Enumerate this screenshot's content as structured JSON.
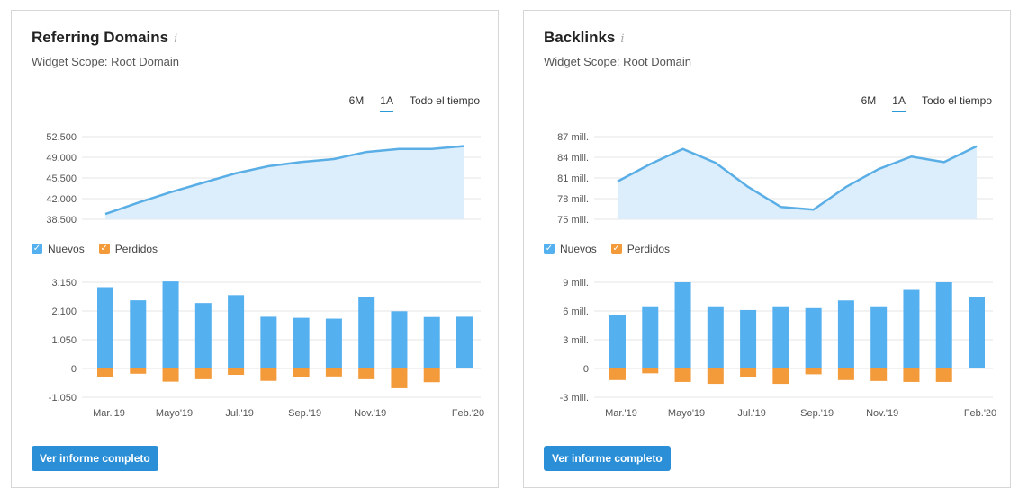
{
  "colors": {
    "accent": "#2a9ad9",
    "area_line": "#5aaee6",
    "area_fill": "#dceefb",
    "nuevos": "#55b0f0",
    "perdidos": "#f39a3a",
    "grid": "#e4e4e4"
  },
  "widgets": [
    {
      "title": "Referring Domains",
      "info_icon": "i",
      "subtitle": "Widget Scope: Root Domain",
      "tabs": [
        "6M",
        "1A",
        "Todo el tiempo"
      ],
      "active_tab": "1A",
      "legend": [
        "Nuevos",
        "Perdidos"
      ],
      "button_label": "Ver informe completo"
    },
    {
      "title": "Backlinks",
      "info_icon": "i",
      "subtitle": "Widget Scope: Root Domain",
      "tabs": [
        "6M",
        "1A",
        "Todo el tiempo"
      ],
      "active_tab": "1A",
      "legend": [
        "Nuevos",
        "Perdidos"
      ],
      "button_label": "Ver informe completo"
    }
  ],
  "chart_data": [
    {
      "type": "area",
      "x_labels": [
        "Mar.'19",
        "",
        "Mayo'19",
        "",
        "Jul.'19",
        "",
        "Sep.'19",
        "",
        "Nov.'19",
        "",
        "",
        "Feb.'20"
      ],
      "values": [
        39400,
        41300,
        43100,
        44700,
        46300,
        47500,
        48200,
        48700,
        49900,
        50400,
        50400,
        50900
      ],
      "ylim": [
        38500,
        52500
      ],
      "yticks": [
        38500,
        42000,
        45500,
        49000,
        52500
      ],
      "ytick_labels": [
        "38.500",
        "42.000",
        "45.500",
        "49.000",
        "52.500"
      ],
      "grid": true
    },
    {
      "type": "bar",
      "x_labels": [
        "Mar.'19",
        "",
        "Mayo'19",
        "",
        "Jul.'19",
        "",
        "Sep.'19",
        "",
        "Nov.'19",
        "",
        "",
        "Feb.'20"
      ],
      "series": [
        {
          "name": "Nuevos",
          "values": [
            2970,
            2490,
            3180,
            2390,
            2680,
            1890,
            1850,
            1820,
            2610,
            2090,
            1880,
            1890
          ]
        },
        {
          "name": "Perdidos",
          "values": [
            -310,
            -190,
            -480,
            -390,
            -230,
            -450,
            -310,
            -290,
            -390,
            -720,
            -500,
            0
          ]
        }
      ],
      "ylim": [
        -1050,
        3150
      ],
      "yticks": [
        -1050,
        0,
        1050,
        2100,
        3150
      ],
      "ytick_labels": [
        "-1.050",
        "0",
        "1.050",
        "2.100",
        "3.150"
      ],
      "grid": true
    },
    {
      "type": "area",
      "x_labels": [
        "Mar.'19",
        "",
        "Mayo'19",
        "",
        "Jul.'19",
        "",
        "Sep.'19",
        "",
        "Nov.'19",
        "",
        "",
        "Feb.'20"
      ],
      "values": [
        80.5,
        83.0,
        85.2,
        83.2,
        79.7,
        76.8,
        76.4,
        79.7,
        82.3,
        84.1,
        83.3,
        85.6
      ],
      "ylim": [
        75,
        87
      ],
      "yticks": [
        75,
        78,
        81,
        84,
        87
      ],
      "ytick_labels": [
        "75 mill.",
        "78 mill.",
        "81 mill.",
        "84 mill.",
        "87 mill."
      ],
      "grid": true
    },
    {
      "type": "bar",
      "x_labels": [
        "Mar.'19",
        "",
        "Mayo'19",
        "",
        "Jul.'19",
        "",
        "Sep.'19",
        "",
        "Nov.'19",
        "",
        "",
        "Feb.'20"
      ],
      "series": [
        {
          "name": "Nuevos",
          "values": [
            5.6,
            6.4,
            9.0,
            6.4,
            6.1,
            6.4,
            6.3,
            7.1,
            6.4,
            8.2,
            9.0,
            7.5
          ]
        },
        {
          "name": "Perdidos",
          "values": [
            -1.2,
            -0.5,
            -1.4,
            -1.6,
            -0.9,
            -1.6,
            -0.6,
            -1.2,
            -1.3,
            -1.4,
            -1.4,
            0
          ]
        }
      ],
      "ylim": [
        -3,
        9
      ],
      "yticks": [
        -3,
        0,
        3,
        6,
        9
      ],
      "ytick_labels": [
        "-3 mill.",
        "0",
        "3 mill.",
        "6 mill.",
        "9 mill."
      ],
      "grid": true
    }
  ]
}
